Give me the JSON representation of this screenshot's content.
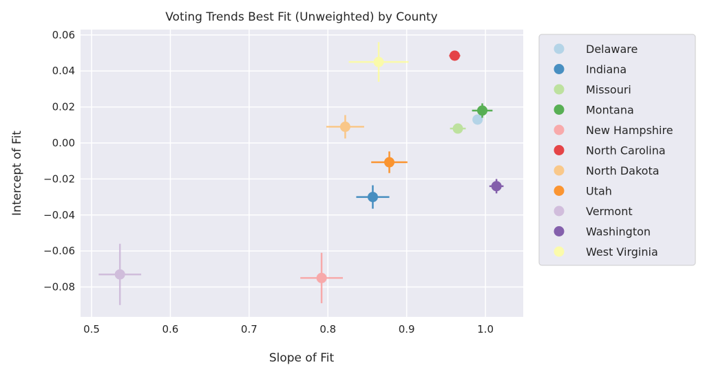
{
  "chart_data": {
    "type": "scatter",
    "title": "Voting Trends Best Fit (Unweighted) by County",
    "xlabel": "Slope of Fit",
    "ylabel": "Intercept of Fit",
    "xlim": [
      0.486,
      1.048
    ],
    "ylim": [
      -0.0966,
      0.063
    ],
    "xticks": [
      0.5,
      0.6,
      0.7,
      0.8,
      0.9,
      1.0
    ],
    "xtick_labels": [
      "0.5",
      "0.6",
      "0.7",
      "0.8",
      "0.9",
      "1.0"
    ],
    "yticks": [
      0.06,
      0.04,
      0.02,
      0.0,
      -0.02,
      -0.04,
      -0.06,
      -0.08
    ],
    "ytick_labels": [
      "0.06",
      "0.04",
      "0.02",
      "0.00",
      "−0.02",
      "−0.04",
      "−0.06",
      "−0.08"
    ],
    "grid": true,
    "legend_position": "outside-right",
    "series": [
      {
        "name": "Delaware",
        "color": "#a6cee3",
        "x": 0.99,
        "y": 0.013,
        "xerr": 0.0,
        "yerr": 0.0
      },
      {
        "name": "Indiana",
        "color": "#1f78b4",
        "x": 0.857,
        "y": -0.03,
        "xerr": 0.021,
        "yerr": 0.0065
      },
      {
        "name": "Missouri",
        "color": "#b2df8a",
        "x": 0.965,
        "y": 0.008,
        "xerr": 0.01,
        "yerr": 0.0
      },
      {
        "name": "Montana",
        "color": "#33a02c",
        "x": 0.996,
        "y": 0.018,
        "xerr": 0.013,
        "yerr": 0.004
      },
      {
        "name": "New Hampshire",
        "color": "#fb9a99",
        "x": 0.792,
        "y": -0.075,
        "xerr": 0.027,
        "yerr": 0.014
      },
      {
        "name": "North Carolina",
        "color": "#e31a1c",
        "x": 0.961,
        "y": 0.0485,
        "xerr": 0.007,
        "yerr": 0.002
      },
      {
        "name": "North Dakota",
        "color": "#fdbf6f",
        "x": 0.822,
        "y": 0.009,
        "xerr": 0.024,
        "yerr": 0.0065
      },
      {
        "name": "Utah",
        "color": "#ff7f00",
        "x": 0.878,
        "y": -0.0107,
        "xerr": 0.023,
        "yerr": 0.006
      },
      {
        "name": "Vermont",
        "color": "#cab2d6",
        "x": 0.536,
        "y": -0.073,
        "xerr": 0.027,
        "yerr": 0.017
      },
      {
        "name": "Washington",
        "color": "#6a3d9a",
        "x": 1.014,
        "y": -0.024,
        "xerr": 0.009,
        "yerr": 0.004
      },
      {
        "name": "West Virginia",
        "color": "#ffff99",
        "x": 0.8645,
        "y": 0.045,
        "xerr": 0.038,
        "yerr": 0.011
      }
    ]
  }
}
